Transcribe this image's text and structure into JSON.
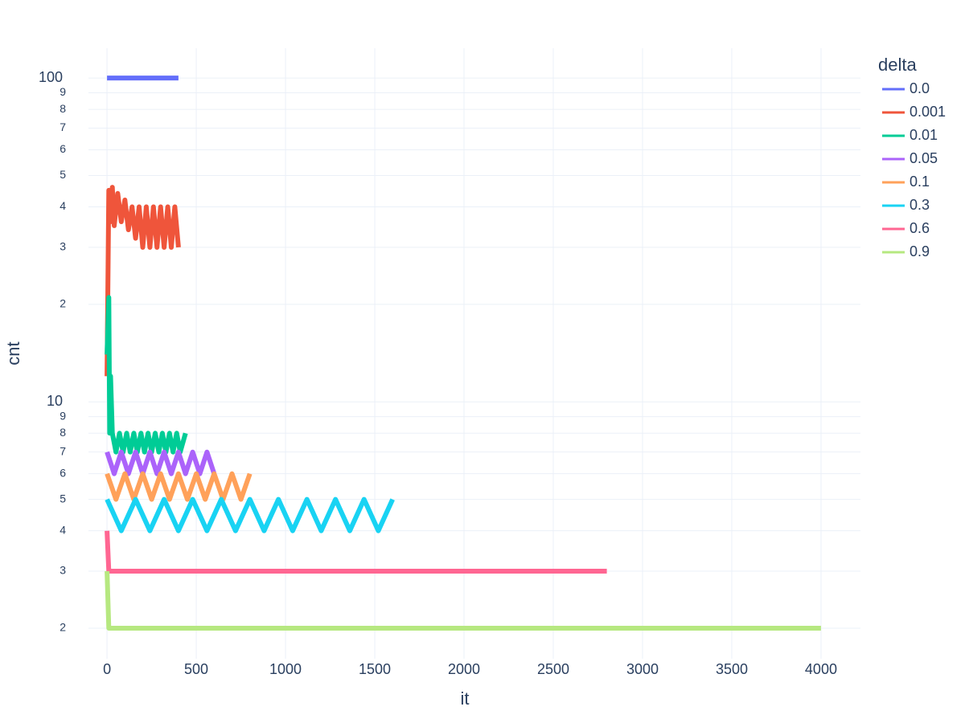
{
  "chart_data": {
    "type": "line",
    "xlabel": "it",
    "ylabel": "cnt",
    "legend_title": "delta",
    "legend_position": "right",
    "log_y": true,
    "grid": true,
    "xlim": [
      -104,
      4221
    ],
    "ylim": [
      1.61,
      123.6
    ],
    "xticks": [
      0,
      500,
      1000,
      1500,
      2000,
      2500,
      3000,
      3500,
      4000
    ],
    "yticks": [
      2,
      3,
      4,
      5,
      6,
      7,
      8,
      9,
      10,
      {
        "value": 20,
        "label": "2"
      },
      {
        "value": 30,
        "label": "3"
      },
      {
        "value": 40,
        "label": "4"
      },
      {
        "value": 50,
        "label": "5"
      },
      {
        "value": 60,
        "label": "6"
      },
      {
        "value": 70,
        "label": "7"
      },
      {
        "value": 80,
        "label": "8"
      },
      {
        "value": 90,
        "label": "9"
      },
      100
    ],
    "series": [
      {
        "name": "0.0",
        "color": "#636efa",
        "x": [
          0,
          400
        ],
        "values": [
          100,
          100
        ]
      },
      {
        "name": "0.001",
        "color": "#EF553B",
        "x": [
          0,
          10,
          20,
          30,
          40,
          60,
          80,
          100,
          120,
          140,
          160,
          180,
          200,
          220,
          240,
          260,
          280,
          300,
          320,
          340,
          360,
          380,
          400
        ],
        "values": [
          12,
          45,
          36,
          46,
          35,
          44,
          36,
          42,
          34,
          40,
          32,
          40,
          30,
          40,
          30,
          40,
          30,
          40,
          30,
          40,
          30,
          40,
          30
        ]
      },
      {
        "name": "0.01",
        "color": "#00cc96",
        "x": [
          0,
          10,
          15,
          20,
          30,
          50,
          70,
          90,
          110,
          130,
          150,
          170,
          190,
          210,
          230,
          250,
          270,
          290,
          310,
          330,
          350,
          370,
          390,
          410,
          440
        ],
        "values": [
          14,
          21,
          8,
          12,
          8,
          7,
          8,
          7,
          8,
          7,
          8,
          7,
          8,
          7,
          8,
          7,
          8,
          7,
          8,
          7,
          8,
          7,
          8,
          7,
          8
        ]
      },
      {
        "name": "0.05",
        "color": "#ab63fa",
        "x": [
          0,
          40,
          80,
          120,
          160,
          200,
          240,
          280,
          320,
          360,
          400,
          440,
          480,
          520,
          560,
          600
        ],
        "values": [
          7,
          6,
          7,
          6,
          7,
          6,
          7,
          6,
          7,
          6,
          7,
          6,
          7,
          6,
          7,
          6
        ]
      },
      {
        "name": "0.1",
        "color": "#FFA15A",
        "x": [
          0,
          50,
          100,
          150,
          200,
          250,
          300,
          350,
          400,
          450,
          500,
          550,
          600,
          650,
          700,
          750,
          800
        ],
        "values": [
          6,
          5,
          6,
          5,
          6,
          5,
          6,
          5,
          6,
          5,
          6,
          5,
          6,
          5,
          6,
          5,
          6
        ]
      },
      {
        "name": "0.3",
        "color": "#19d3f3",
        "x": [
          0,
          80,
          160,
          240,
          320,
          400,
          480,
          560,
          640,
          720,
          800,
          880,
          960,
          1040,
          1120,
          1200,
          1280,
          1360,
          1440,
          1520,
          1600
        ],
        "values": [
          5,
          4,
          5,
          4,
          5,
          4,
          5,
          4,
          5,
          4,
          5,
          4,
          5,
          4,
          5,
          4,
          5,
          4,
          5,
          4,
          5
        ]
      },
      {
        "name": "0.6",
        "color": "#FF6692",
        "x": [
          0,
          10,
          2800
        ],
        "values": [
          4,
          3,
          3
        ]
      },
      {
        "name": "0.9",
        "color": "#B6E880",
        "x": [
          0,
          10,
          4000
        ],
        "values": [
          3,
          2,
          2
        ]
      }
    ]
  }
}
